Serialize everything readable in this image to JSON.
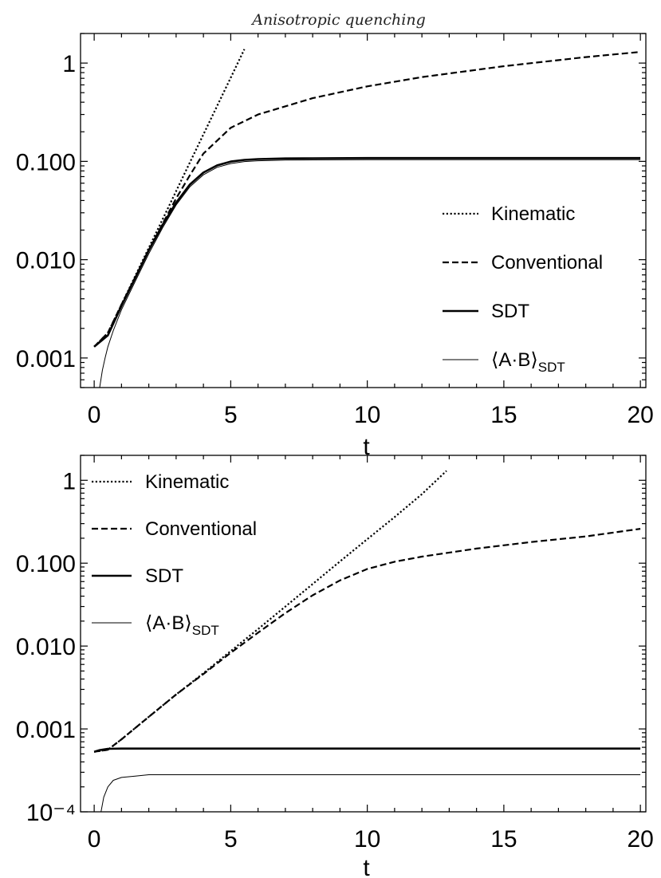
{
  "title": "Anisotropic quenching",
  "chart_data": [
    {
      "type": "line",
      "xlabel": "t",
      "ylabel": "",
      "xlim": [
        -0.5,
        20.2
      ],
      "ylim": [
        0.0005,
        2
      ],
      "yscale": "log",
      "xticks": [
        0,
        5,
        10,
        15,
        20
      ],
      "xtick_labels": [
        "0",
        "5",
        "10",
        "15",
        "20"
      ],
      "yticks": [
        0.001,
        0.01,
        0.1,
        1
      ],
      "ytick_labels": [
        "0.001",
        "0.010",
        "0.100",
        "1"
      ],
      "legend_position": "right",
      "series": [
        {
          "name": "Kinematic",
          "style": "dotted",
          "x": [
            0,
            0.5,
            1,
            1.5,
            2,
            2.5,
            3,
            3.5,
            4,
            4.5,
            5,
            5.5
          ],
          "y": [
            0.0013,
            0.0018,
            0.0035,
            0.0068,
            0.0132,
            0.0256,
            0.0498,
            0.097,
            0.188,
            0.366,
            0.711,
            1.383
          ]
        },
        {
          "name": "Conventional",
          "style": "dashed",
          "x": [
            0,
            0.5,
            1,
            1.5,
            2,
            2.5,
            3,
            3.5,
            4,
            5,
            6,
            8,
            10,
            12,
            15,
            18,
            20
          ],
          "y": [
            0.0013,
            0.0018,
            0.0035,
            0.0066,
            0.0125,
            0.023,
            0.042,
            0.072,
            0.12,
            0.22,
            0.3,
            0.44,
            0.58,
            0.72,
            0.93,
            1.15,
            1.3
          ]
        },
        {
          "name": "SDT",
          "style": "solid-thick",
          "x": [
            0,
            0.5,
            1,
            1.5,
            2,
            2.5,
            3,
            3.5,
            4,
            4.5,
            5,
            5.5,
            6,
            7,
            8,
            10,
            15,
            20
          ],
          "y": [
            0.0013,
            0.0017,
            0.0034,
            0.0065,
            0.0125,
            0.0225,
            0.038,
            0.058,
            0.077,
            0.091,
            0.0995,
            0.1035,
            0.1055,
            0.107,
            0.1075,
            0.108,
            0.108,
            0.108
          ]
        },
        {
          "name": "⟨A·B⟩SDT",
          "style": "solid-thin",
          "x": [
            0.2,
            0.3,
            0.4,
            0.5,
            0.7,
            1,
            1.5,
            2,
            2.5,
            3,
            3.5,
            4,
            4.5,
            5,
            5.5,
            6,
            7,
            8,
            10,
            15,
            20
          ],
          "y": [
            0.0005,
            0.00075,
            0.001,
            0.0013,
            0.0019,
            0.0031,
            0.006,
            0.0115,
            0.021,
            0.036,
            0.055,
            0.073,
            0.087,
            0.095,
            0.0995,
            0.1015,
            0.103,
            0.1035,
            0.104,
            0.104,
            0.104
          ]
        }
      ]
    },
    {
      "type": "line",
      "xlabel": "t",
      "ylabel": "",
      "xlim": [
        -0.5,
        20.2
      ],
      "ylim": [
        0.0001,
        2
      ],
      "yscale": "log",
      "xticks": [
        0,
        5,
        10,
        15,
        20
      ],
      "xtick_labels": [
        "0",
        "5",
        "10",
        "15",
        "20"
      ],
      "yticks": [
        0.0001,
        0.001,
        0.01,
        0.1,
        1
      ],
      "ytick_labels": [
        "10⁻⁴",
        "0.001",
        "0.010",
        "0.100",
        "1"
      ],
      "legend_position": "top-left",
      "series": [
        {
          "name": "Kinematic",
          "style": "dotted",
          "x": [
            0,
            0.5,
            1,
            2,
            3,
            4,
            5,
            6,
            7,
            8,
            9,
            10,
            11,
            12,
            12.9
          ],
          "y": [
            0.00053,
            0.00056,
            0.00075,
            0.0014,
            0.0026,
            0.0047,
            0.0087,
            0.016,
            0.03,
            0.056,
            0.105,
            0.195,
            0.36,
            0.68,
            1.3
          ]
        },
        {
          "name": "Conventional",
          "style": "dashed",
          "x": [
            0,
            0.5,
            1,
            2,
            3,
            4,
            5,
            6,
            7,
            8,
            9,
            10,
            11,
            12,
            14,
            16,
            18,
            20
          ],
          "y": [
            0.00053,
            0.00056,
            0.00075,
            0.0014,
            0.0026,
            0.0046,
            0.0083,
            0.0145,
            0.025,
            0.041,
            0.062,
            0.085,
            0.104,
            0.12,
            0.15,
            0.18,
            0.21,
            0.26
          ]
        },
        {
          "name": "SDT",
          "style": "solid-thick",
          "x": [
            0,
            0.2,
            0.5,
            1,
            1.5,
            2,
            3,
            5,
            10,
            15,
            20
          ],
          "y": [
            0.00053,
            0.000555,
            0.000575,
            0.00058,
            0.00058,
            0.00058,
            0.00058,
            0.00058,
            0.00058,
            0.00058,
            0.00058
          ]
        },
        {
          "name": "⟨A·B⟩SDT",
          "style": "solid-thin",
          "x": [
            0.25,
            0.35,
            0.5,
            0.7,
            1,
            1.5,
            2,
            3,
            5,
            10,
            15,
            20
          ],
          "y": [
            0.0001,
            0.00015,
            0.0002,
            0.00024,
            0.00026,
            0.00027,
            0.00028,
            0.00028,
            0.00028,
            0.00028,
            0.00028,
            0.00028
          ]
        }
      ]
    }
  ]
}
